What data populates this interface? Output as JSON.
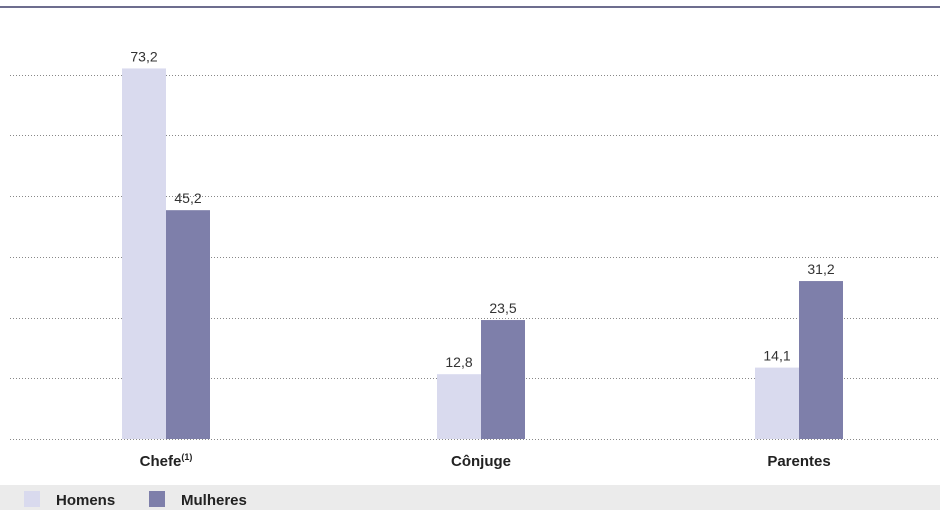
{
  "chart_data": {
    "type": "bar",
    "categories": [
      "Chefe",
      "Cônjuge",
      "Parentes"
    ],
    "category_superscripts": [
      "(1)",
      "",
      ""
    ],
    "series": [
      {
        "name": "Homens",
        "values": [
          73.2,
          12.8,
          14.1
        ],
        "labels": [
          "73,2",
          "12,8",
          "14,1"
        ],
        "color": "#d9daee"
      },
      {
        "name": "Mulheres",
        "values": [
          45.2,
          23.5,
          31.2
        ],
        "labels": [
          "45,2",
          "23,5",
          "31,2"
        ],
        "color": "#7e7faa"
      }
    ],
    "ylim": [
      0,
      80
    ],
    "grid": true,
    "legend_position": "bottom-left"
  },
  "colors": {
    "top_rule": "#6d6d8e",
    "gridline": "#888888",
    "legend_background": "#ebebeb"
  }
}
